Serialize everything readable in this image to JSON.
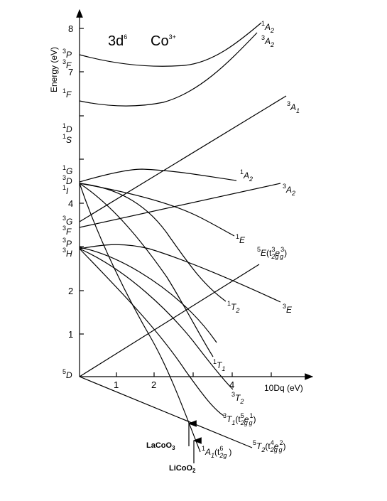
{
  "diagram": {
    "title_config": "3d",
    "title_config_sup": "6",
    "title_ion": "Co",
    "title_ion_sup": "3+",
    "y_axis_label": "Energy (eV)",
    "x_axis_label": "10Dq (eV)",
    "y_ticks": [
      "1",
      "2",
      "4",
      "7",
      "8"
    ],
    "x_ticks": [
      "1",
      "2",
      "4"
    ],
    "free_ion_terms": [
      {
        "mult": "3",
        "letter": "P"
      },
      {
        "mult": "3",
        "letter": "F"
      },
      {
        "mult": "1",
        "letter": "F"
      },
      {
        "mult": "1",
        "letter": "D"
      },
      {
        "mult": "1",
        "letter": "S"
      },
      {
        "mult": "1",
        "letter": "G"
      },
      {
        "mult": "3",
        "letter": "D"
      },
      {
        "mult": "1",
        "letter": "I"
      },
      {
        "mult": "3",
        "letter": "G"
      },
      {
        "mult": "3",
        "letter": "F"
      },
      {
        "mult": "3",
        "letter": "P"
      },
      {
        "mult": "3",
        "letter": "H"
      },
      {
        "mult": "5",
        "letter": "D"
      }
    ],
    "curve_labels": {
      "A2_1_top": {
        "mult": "1",
        "letter": "A",
        "sub": "2"
      },
      "A2_3_top": {
        "mult": "3",
        "letter": "A",
        "sub": "2"
      },
      "A1_3": {
        "mult": "3",
        "letter": "A",
        "sub": "1"
      },
      "A2_1_mid": {
        "mult": "1",
        "letter": "A",
        "sub": "2"
      },
      "A2_3_mid": {
        "mult": "3",
        "letter": "A",
        "sub": "2"
      },
      "E_1": {
        "mult": "1",
        "letter": "E"
      },
      "E_5": {
        "mult": "5",
        "letter": "E",
        "config": "(t",
        "c1sub": "2g",
        "c1sup": "3",
        "c2": "e",
        "c2sub": "g",
        "c2sup": "3",
        "close": ")"
      },
      "T2_1": {
        "mult": "1",
        "letter": "T",
        "sub": "2"
      },
      "E_3": {
        "mult": "3",
        "letter": "E"
      },
      "T1_1": {
        "mult": "1",
        "letter": "T",
        "sub": "1"
      },
      "T2_3": {
        "mult": "3",
        "letter": "T",
        "sub": "2"
      },
      "T1_3": {
        "mult": "3",
        "letter": "T",
        "sub": "1",
        "config": "(t",
        "c1sub": "2g",
        "c1sup": "5",
        "c2": "e",
        "c2sub": "g",
        "c2sup": "1",
        "close": ")"
      },
      "T2_5": {
        "mult": "5",
        "letter": "T",
        "sub": "2",
        "config": "(t",
        "c1sub": "2g",
        "c1sup": "4",
        "c2": "e",
        "c2sub": "g",
        "c2sup": "2",
        "close": ")"
      },
      "A1_1": {
        "mult": "1",
        "letter": "A",
        "sub": "1",
        "config": "(t",
        "c1sub": "2g",
        "c1sup": "6",
        "close": ")"
      }
    },
    "markers": {
      "lacoo3": {
        "base": "LaCoO",
        "sub": "3"
      },
      "licoo2": {
        "base": "LiCoO",
        "sub": "2"
      }
    }
  }
}
